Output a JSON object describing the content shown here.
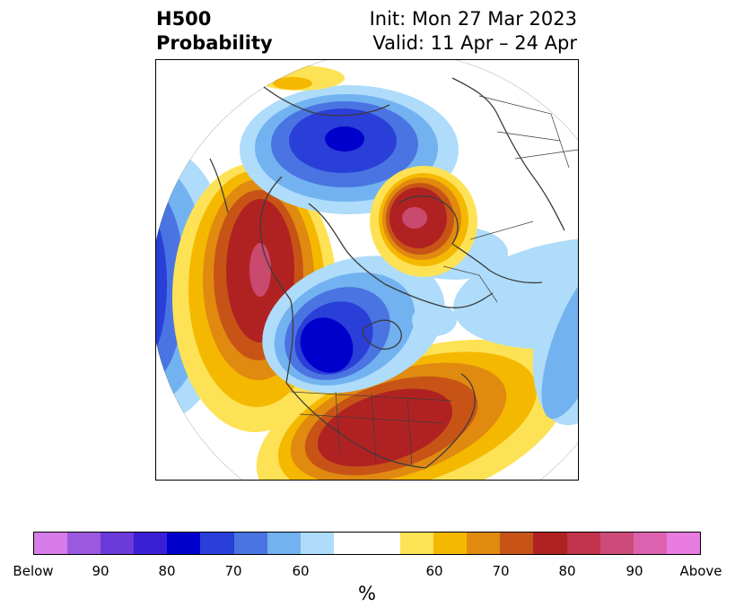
{
  "title": {
    "left_line1": "H500",
    "left_line2": "Probability",
    "right_line1": "Init: Mon 27 Mar 2023",
    "right_line2": "Valid: 11 Apr – 24 Apr"
  },
  "colorbar": {
    "colors": [
      "#d77be8",
      "#9b59e0",
      "#6c3ad8",
      "#3a1fd4",
      "#0000cc",
      "#2a3fd8",
      "#4a74e2",
      "#72b2f0",
      "#aedcfa",
      "#ffffff",
      "#ffffff",
      "#fee255",
      "#f5b800",
      "#e08a10",
      "#c75416",
      "#b02222",
      "#c0334a",
      "#cd4b7a",
      "#dc62b0",
      "#e77be0"
    ],
    "tick_labels": [
      "Below",
      "90",
      "80",
      "70",
      "60",
      "60",
      "70",
      "80",
      "90",
      "Above"
    ],
    "label": "%"
  },
  "map": {
    "projection": "polar stereographic, North Pole",
    "palette": {
      "above": [
        "#fee255",
        "#f5b800",
        "#e08a10",
        "#c75416",
        "#b02222",
        "#c9496f"
      ],
      "below": [
        "#aedcfa",
        "#72b2f0",
        "#4a74e2",
        "#2a3fd8",
        "#0000cc"
      ],
      "coast": "#3c3c3c"
    }
  }
}
